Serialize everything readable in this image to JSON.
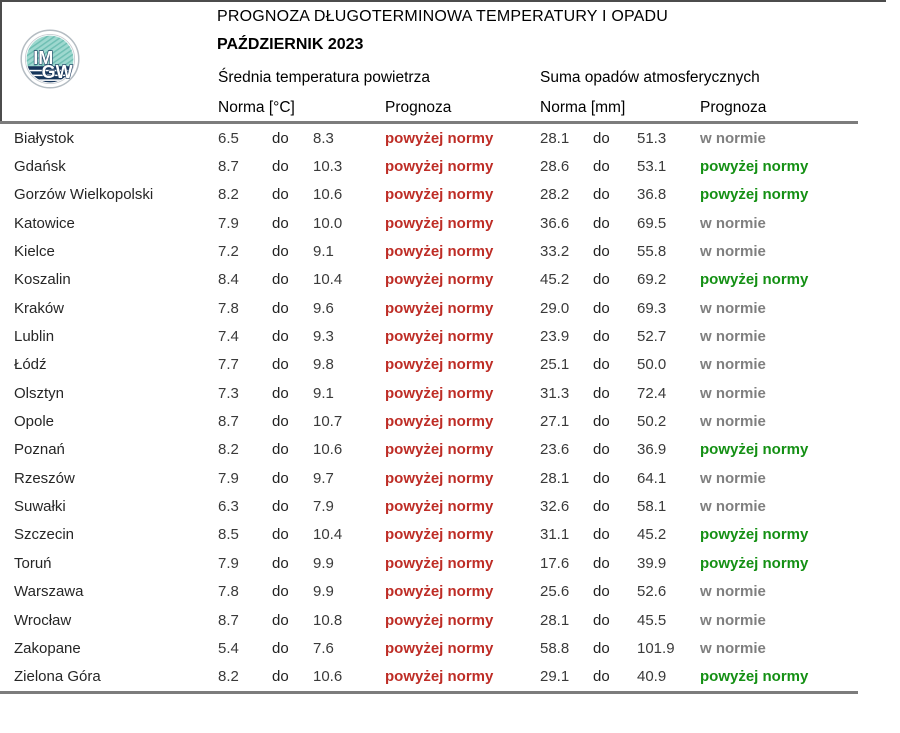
{
  "header": {
    "title": "PROGNOZA DŁUGOTERMINOWA TEMPERATURY I OPADU",
    "subtitle": "PAŹDZIERNIK 2023",
    "logo_text_top": "IM",
    "logo_text_bottom": "GW",
    "temp_group_label": "Średnia temperatura powietrza",
    "precip_group_label": "Suma opadów atmosferycznych",
    "temp_norm_label": "Norma [°C]",
    "precip_norm_label": "Norma [mm]",
    "prognoza_label": "Prognoza"
  },
  "labels": {
    "range_separator": "do",
    "above_norm": "powyżej normy",
    "in_norm": "w normie"
  },
  "colors": {
    "temp_above": "#be2d26",
    "precip_above": "#149014",
    "in_norm_gray": "#7f7f7f",
    "logo_teal": "#9ed8cf",
    "logo_navy": "#16355a"
  },
  "table": {
    "rows": [
      {
        "city": "Białystok",
        "t_lo": "6.5",
        "t_hi": "8.3",
        "t_prog": "powyżej normy",
        "t_status": "above",
        "p_lo": "28.1",
        "p_hi": "51.3",
        "p_prog": "w normie",
        "p_status": "normal"
      },
      {
        "city": "Gdańsk",
        "t_lo": "8.7",
        "t_hi": "10.3",
        "t_prog": "powyżej normy",
        "t_status": "above",
        "p_lo": "28.6",
        "p_hi": "53.1",
        "p_prog": "powyżej normy",
        "p_status": "above"
      },
      {
        "city": "Gorzów Wielkopolski",
        "t_lo": "8.2",
        "t_hi": "10.6",
        "t_prog": "powyżej normy",
        "t_status": "above",
        "p_lo": "28.2",
        "p_hi": "36.8",
        "p_prog": "powyżej normy",
        "p_status": "above"
      },
      {
        "city": "Katowice",
        "t_lo": "7.9",
        "t_hi": "10.0",
        "t_prog": "powyżej normy",
        "t_status": "above",
        "p_lo": "36.6",
        "p_hi": "69.5",
        "p_prog": "w normie",
        "p_status": "normal"
      },
      {
        "city": "Kielce",
        "t_lo": "7.2",
        "t_hi": "9.1",
        "t_prog": "powyżej normy",
        "t_status": "above",
        "p_lo": "33.2",
        "p_hi": "55.8",
        "p_prog": "w normie",
        "p_status": "normal"
      },
      {
        "city": "Koszalin",
        "t_lo": "8.4",
        "t_hi": "10.4",
        "t_prog": "powyżej normy",
        "t_status": "above",
        "p_lo": "45.2",
        "p_hi": "69.2",
        "p_prog": "powyżej normy",
        "p_status": "above"
      },
      {
        "city": "Kraków",
        "t_lo": "7.8",
        "t_hi": "9.6",
        "t_prog": "powyżej normy",
        "t_status": "above",
        "p_lo": "29.0",
        "p_hi": "69.3",
        "p_prog": "w normie",
        "p_status": "normal"
      },
      {
        "city": "Lublin",
        "t_lo": "7.4",
        "t_hi": "9.3",
        "t_prog": "powyżej normy",
        "t_status": "above",
        "p_lo": "23.9",
        "p_hi": "52.7",
        "p_prog": "w normie",
        "p_status": "normal"
      },
      {
        "city": "Łódź",
        "t_lo": "7.7",
        "t_hi": "9.8",
        "t_prog": "powyżej normy",
        "t_status": "above",
        "p_lo": "25.1",
        "p_hi": "50.0",
        "p_prog": "w normie",
        "p_status": "normal"
      },
      {
        "city": "Olsztyn",
        "t_lo": "7.3",
        "t_hi": "9.1",
        "t_prog": "powyżej normy",
        "t_status": "above",
        "p_lo": "31.3",
        "p_hi": "72.4",
        "p_prog": "w normie",
        "p_status": "normal"
      },
      {
        "city": "Opole",
        "t_lo": "8.7",
        "t_hi": "10.7",
        "t_prog": "powyżej normy",
        "t_status": "above",
        "p_lo": "27.1",
        "p_hi": "50.2",
        "p_prog": "w normie",
        "p_status": "normal"
      },
      {
        "city": "Poznań",
        "t_lo": "8.2",
        "t_hi": "10.6",
        "t_prog": "powyżej normy",
        "t_status": "above",
        "p_lo": "23.6",
        "p_hi": "36.9",
        "p_prog": "powyżej normy",
        "p_status": "above"
      },
      {
        "city": "Rzeszów",
        "t_lo": "7.9",
        "t_hi": "9.7",
        "t_prog": "powyżej normy",
        "t_status": "above",
        "p_lo": "28.1",
        "p_hi": "64.1",
        "p_prog": "w normie",
        "p_status": "normal"
      },
      {
        "city": "Suwałki",
        "t_lo": "6.3",
        "t_hi": "7.9",
        "t_prog": "powyżej normy",
        "t_status": "above",
        "p_lo": "32.6",
        "p_hi": "58.1",
        "p_prog": "w normie",
        "p_status": "normal"
      },
      {
        "city": "Szczecin",
        "t_lo": "8.5",
        "t_hi": "10.4",
        "t_prog": "powyżej normy",
        "t_status": "above",
        "p_lo": "31.1",
        "p_hi": "45.2",
        "p_prog": "powyżej normy",
        "p_status": "above"
      },
      {
        "city": "Toruń",
        "t_lo": "7.9",
        "t_hi": "9.9",
        "t_prog": "powyżej normy",
        "t_status": "above",
        "p_lo": "17.6",
        "p_hi": "39.9",
        "p_prog": "powyżej normy",
        "p_status": "above"
      },
      {
        "city": "Warszawa",
        "t_lo": "7.8",
        "t_hi": "9.9",
        "t_prog": "powyżej normy",
        "t_status": "above",
        "p_lo": "25.6",
        "p_hi": "52.6",
        "p_prog": "w normie",
        "p_status": "normal"
      },
      {
        "city": "Wrocław",
        "t_lo": "8.7",
        "t_hi": "10.8",
        "t_prog": "powyżej normy",
        "t_status": "above",
        "p_lo": "28.1",
        "p_hi": "45.5",
        "p_prog": "w normie",
        "p_status": "normal"
      },
      {
        "city": "Zakopane",
        "t_lo": "5.4",
        "t_hi": "7.6",
        "t_prog": "powyżej normy",
        "t_status": "above",
        "p_lo": "58.8",
        "p_hi": "101.9",
        "p_prog": "w normie",
        "p_status": "normal"
      },
      {
        "city": "Zielona Góra",
        "t_lo": "8.2",
        "t_hi": "10.6",
        "t_prog": "powyżej normy",
        "t_status": "above",
        "p_lo": "29.1",
        "p_hi": "40.9",
        "p_prog": "powyżej normy",
        "p_status": "above"
      }
    ]
  }
}
